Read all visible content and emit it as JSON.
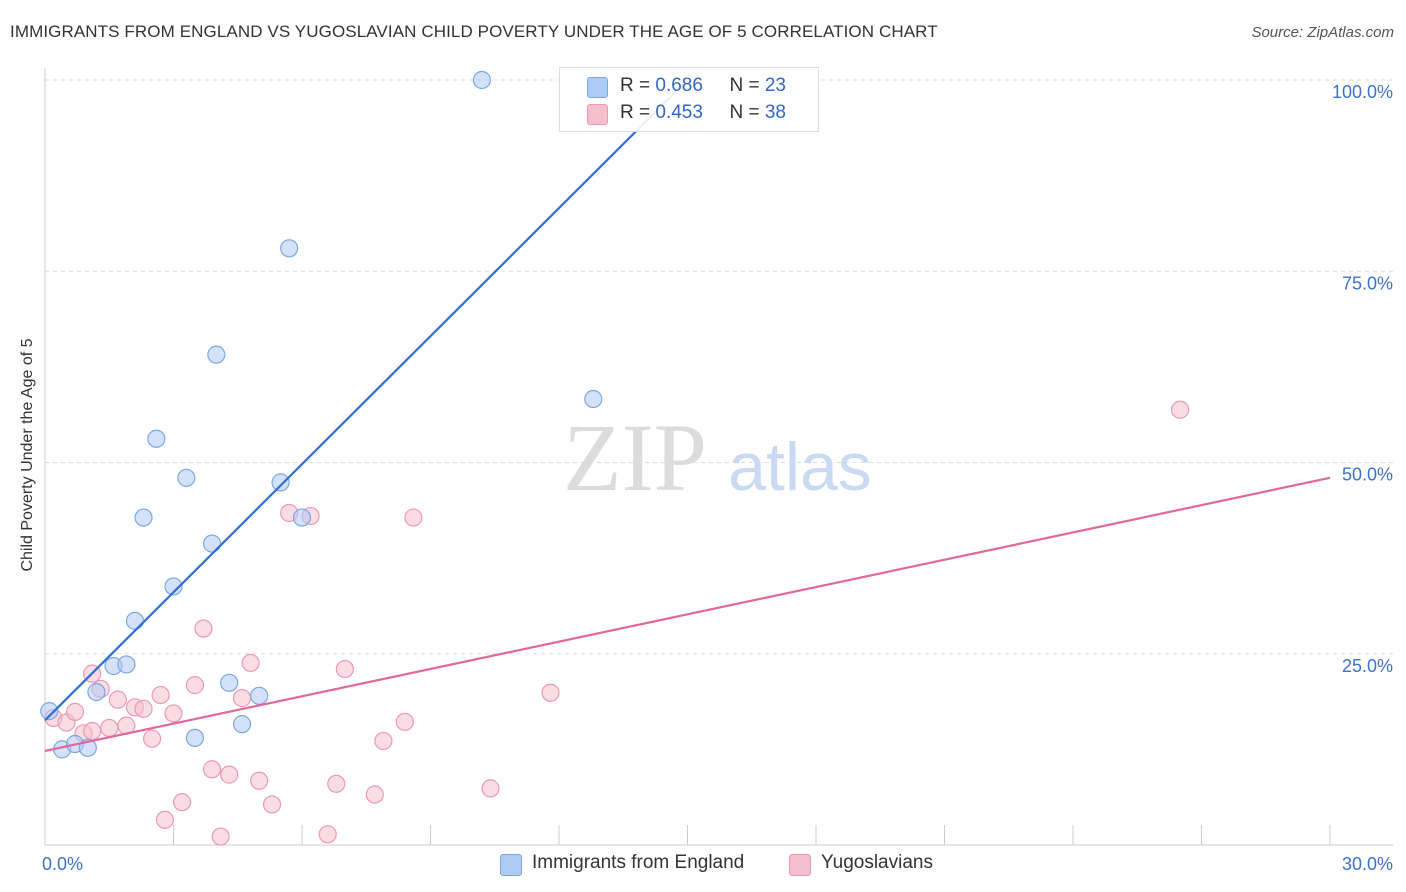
{
  "title": "IMMIGRANTS FROM ENGLAND VS YUGOSLAVIAN CHILD POVERTY UNDER THE AGE OF 5 CORRELATION CHART",
  "source": "Source: ZipAtlas.com",
  "watermark": {
    "zip": "ZIP",
    "atlas": "atlas"
  },
  "colors": {
    "blue_fill": "#aecbf5",
    "blue_stroke": "#7ea7e0",
    "blue_line": "#2f6fd1",
    "pink_fill": "#f6bfd0",
    "pink_stroke": "#ec9ab4",
    "pink_line": "#e0699a",
    "tick_text": "#3d72c9"
  },
  "legend": {
    "rows": [
      {
        "r_label": "R = ",
        "r_value": "0.686",
        "n_label": "N = ",
        "n_value": "23"
      },
      {
        "r_label": "R = ",
        "r_value": "0.453",
        "n_label": "N = ",
        "n_value": "38"
      }
    ]
  },
  "bottom_legend": {
    "series1": "Immigrants from England",
    "series2": "Yugoslavians"
  },
  "chart_data": {
    "type": "scatter",
    "title": "IMMIGRANTS FROM ENGLAND VS YUGOSLAVIAN CHILD POVERTY UNDER THE AGE OF 5 CORRELATION CHART",
    "xlabel": "",
    "ylabel": "Child Poverty Under the Age of 5",
    "xlim": [
      0,
      30
    ],
    "ylim": [
      0,
      100
    ],
    "x_tick_labels": [
      "0.0%",
      "30.0%"
    ],
    "y_ticks": [
      25,
      50,
      75,
      100
    ],
    "y_tick_labels": [
      "25.0%",
      "50.0%",
      "75.0%",
      "100.0%"
    ],
    "grid": true,
    "series": [
      {
        "name": "Immigrants from England",
        "r": 0.686,
        "n": 23,
        "points": [
          [
            0.1,
            17.5
          ],
          [
            0.4,
            12.5
          ],
          [
            0.7,
            13.2
          ],
          [
            1.0,
            12.7
          ],
          [
            1.2,
            20.0
          ],
          [
            1.6,
            23.4
          ],
          [
            1.9,
            23.6
          ],
          [
            2.1,
            29.3
          ],
          [
            2.3,
            42.8
          ],
          [
            2.6,
            53.1
          ],
          [
            3.0,
            33.8
          ],
          [
            3.3,
            48.0
          ],
          [
            3.5,
            14.0
          ],
          [
            3.9,
            39.4
          ],
          [
            4.0,
            64.1
          ],
          [
            4.3,
            21.2
          ],
          [
            4.6,
            15.8
          ],
          [
            5.0,
            19.5
          ],
          [
            5.7,
            78.0
          ],
          [
            5.5,
            47.4
          ],
          [
            6.0,
            42.8
          ],
          [
            10.2,
            100.0
          ],
          [
            12.8,
            58.3
          ]
        ],
        "trendline": {
          "x": [
            0.0,
            15.0
          ],
          "y": [
            16.3,
            100.0
          ]
        }
      },
      {
        "name": "Yugoslavians",
        "r": 0.453,
        "n": 38,
        "points": [
          [
            0.2,
            16.6
          ],
          [
            0.5,
            16.0
          ],
          [
            0.7,
            17.4
          ],
          [
            0.9,
            14.6
          ],
          [
            1.1,
            14.9
          ],
          [
            1.1,
            22.4
          ],
          [
            1.3,
            20.4
          ],
          [
            1.5,
            15.3
          ],
          [
            1.7,
            19.0
          ],
          [
            1.9,
            15.6
          ],
          [
            2.1,
            18.0
          ],
          [
            2.3,
            17.8
          ],
          [
            2.5,
            13.9
          ],
          [
            2.7,
            19.6
          ],
          [
            2.8,
            3.3
          ],
          [
            3.0,
            17.2
          ],
          [
            3.2,
            5.6
          ],
          [
            3.5,
            20.9
          ],
          [
            3.7,
            28.3
          ],
          [
            3.9,
            9.9
          ],
          [
            4.1,
            1.1
          ],
          [
            4.3,
            9.2
          ],
          [
            4.6,
            19.2
          ],
          [
            4.8,
            23.8
          ],
          [
            5.0,
            8.4
          ],
          [
            5.3,
            5.3
          ],
          [
            5.7,
            43.4
          ],
          [
            6.2,
            43.0
          ],
          [
            6.6,
            1.4
          ],
          [
            6.8,
            8.0
          ],
          [
            7.0,
            23.0
          ],
          [
            7.7,
            6.6
          ],
          [
            7.9,
            13.6
          ],
          [
            8.4,
            16.1
          ],
          [
            8.6,
            42.8
          ],
          [
            10.4,
            7.4
          ],
          [
            11.8,
            19.9
          ],
          [
            26.5,
            56.9
          ]
        ],
        "trendline": {
          "x": [
            0.0,
            30.0
          ],
          "y": [
            12.3,
            48.0
          ]
        }
      }
    ]
  }
}
